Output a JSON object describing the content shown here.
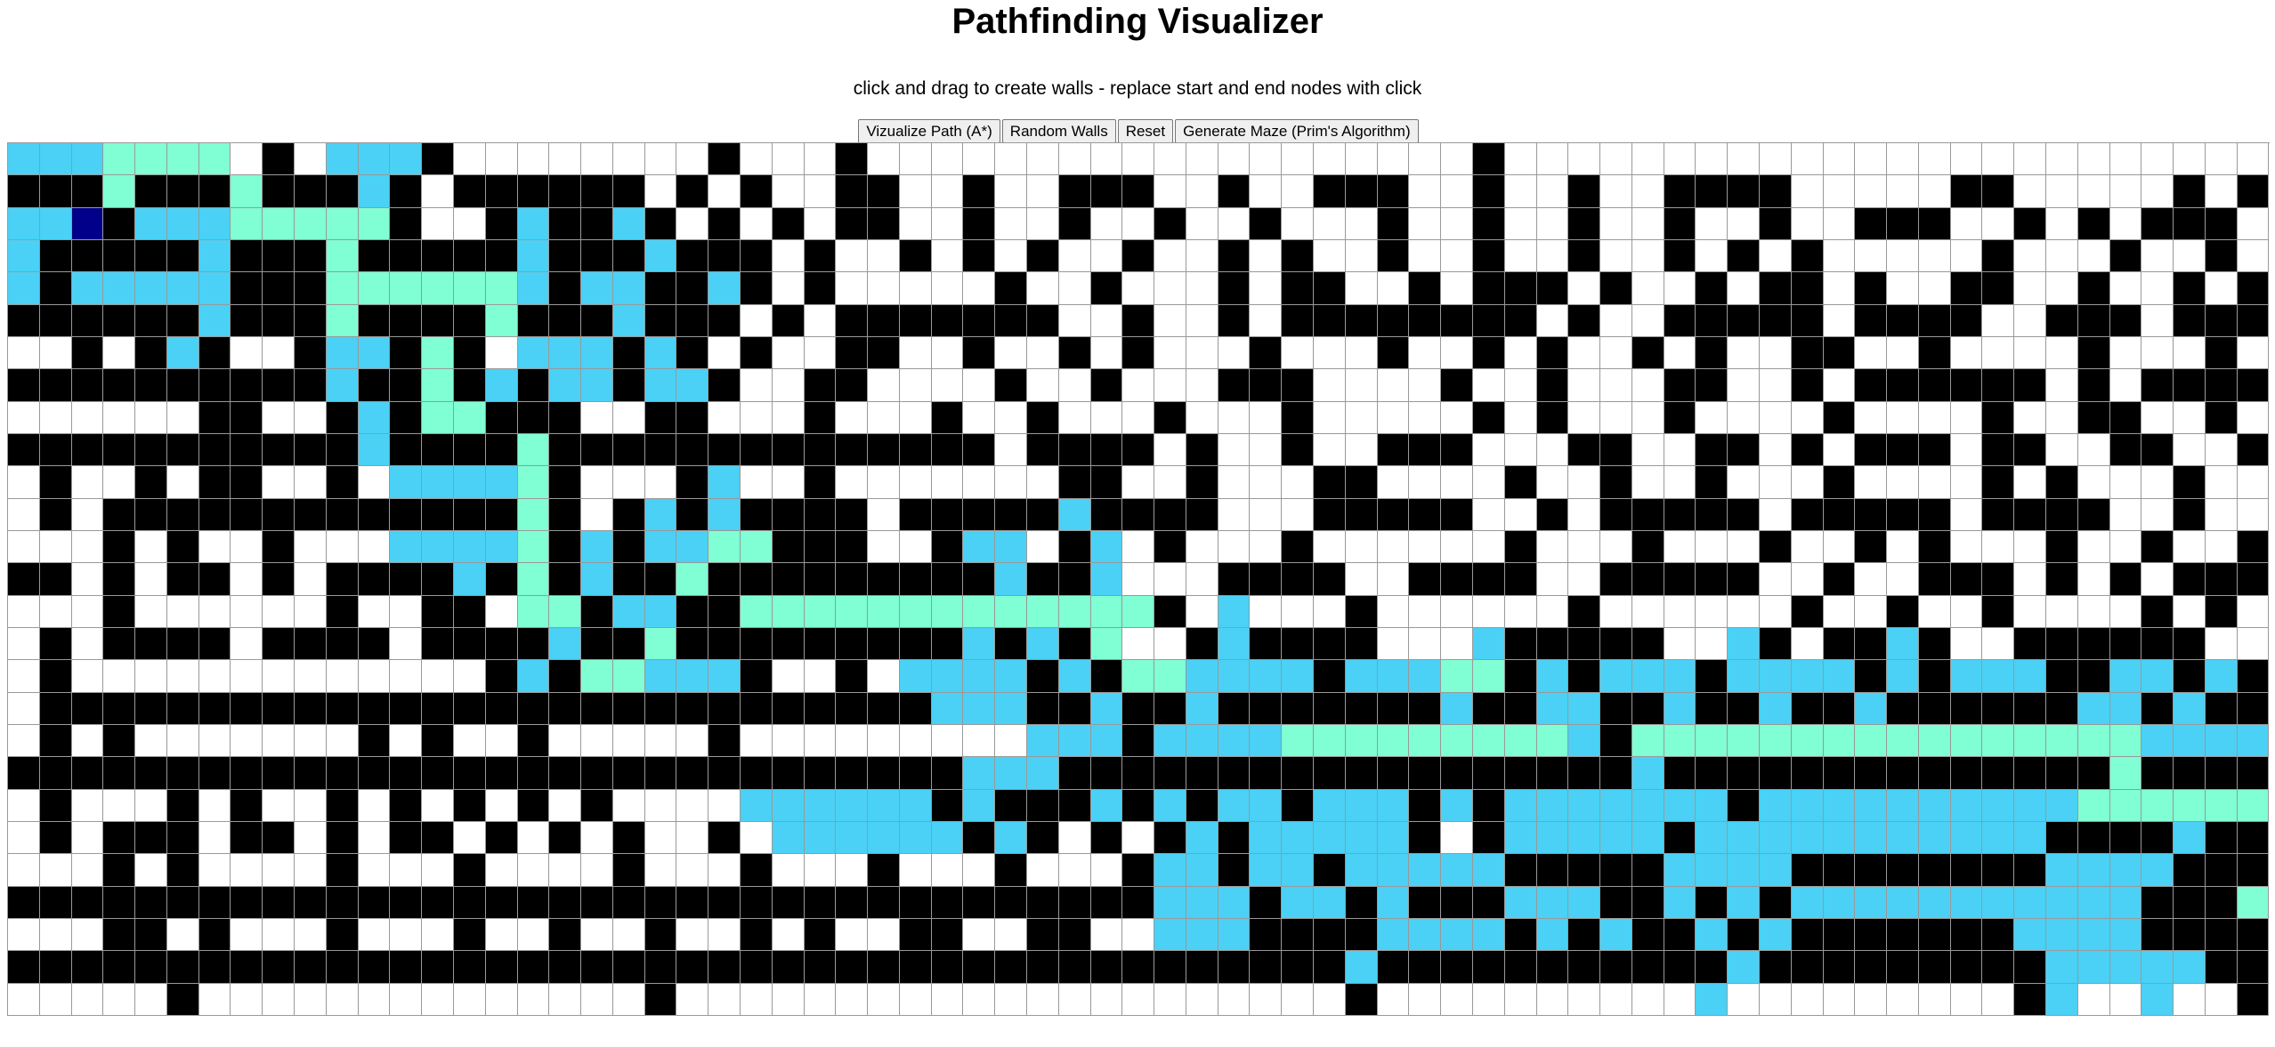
{
  "app": {
    "title": "Pathfinding Visualizer",
    "subtitle": "click and drag to create walls - replace start and end nodes with click"
  },
  "toolbar": {
    "visualize_label": "Vizualize Path (A*)",
    "random_walls_label": "Random Walls",
    "reset_label": "Reset",
    "maze_label": "Generate Maze (Prim's Algorithm)"
  },
  "grid": {
    "rows": 27,
    "cols": 71,
    "legend": {
      "empty": "unvisited-node",
      "wall": "wall-node",
      "visited": "visited-node",
      "path": "path-node",
      "start": "start-node",
      "end": "end-node"
    },
    "colors": {
      "empty": "#ffffff",
      "wall": "#000000",
      "visited": "#4ad1f5",
      "path": "#80ffd4",
      "start": "#00008b",
      "end": "#ff0000",
      "gridline": "#999999"
    },
    "cells": [
      "vvvpppp.w.vvvw........w...w...................w..........................",
      "wwwpwwwpwwwvw.wwwwww.w.w..ww..w..www..w..www..w..w..wwww.....ww.....w.w..",
      "vvswvvvpppppw..wvwwvw.w.w.ww..w..w..w..w...w..w..w..w..w..www..w.w.www...",
      "vwwwwwvwwwpwwwwwvwwwvwww.w..w.w.w..w..w.w..w..w..w..w.w.w.....w...w..w...",
      "vwvvvvvwwwppppppvwvvwwvw.w.....w..w...w.ww..w.www.w..w.ww.w..ww..w..w.w..",
      "wwwwwwvwwwpwwwwpwwwvwww.w.wwwwwww..w..w.wwwwwwww.w..wwwww.wwww..www.wwwww",
      "..w.wvw..wvvwpw.vvvwvw.w..ww..w..w.w...w...w..w.w..w.w..ww..w....w...w.w.",
      "wwwwwwwwwwvwwpwvwvvwvvw..ww....w..w...www....w..w...ww..w.wwwwww.w.wwww..",
      "......ww..wvwppwww..ww...w...w..w...w...w.....w.w...w....w....w..ww..w...",
      "wwwwwwwwwwwvwwwwpwwwwwwwwwwwwww.wwww.w..w..www...ww..ww.w.www.ww..ww..ww.",
      ".w..w.ww..w.vvvvpw...wv..w.......ww..w...ww....w..w..w...w....w.w...w...w",
      ".w.wwwwwwwwwwwwwpw.wvwvwwww.wwwwwvwwww...wwwww..w.wwwww.wwwww.wwww..w..w.",
      "...w.w..w...vvvvpwvwvvppwww..wvv.wv.w...w......w...w...w..w.w...w..w..w..",
      "ww.w.ww.w.wwwwvwpwvwwpwwwwwwwwwvwwv...wwww..wwww..wwwww..w..www.w.w.www..",
      "...w......w..ww.ppwvvwwpppppppppppppw.v...w......w......w..w..w....w.w...",
      ".w.wwww.wwww.wwwwvwwpwwwwwwwwwvwvwp..wvwwww...vwwwww..vw.wwvw..wwwwww..w.",
      ".w.............wvwppvvvw..w.vvvvwvwppvvvvwvvvppwvwvvvwvvvvwvwvvvwwvvwvw.w",
      ".wwwwwwwwwwwwwwwwwwwwwwwwwwwwvvvwwvwwvwwwwwwwvwwvvwwvwwvwwvwwwwwwvvwvwwv.",
      ".w.w.......w.w..w.....w.........vvvwvvvvpppppppppvwppppppppppppppppvvvvvv",
      "wwwwwwwwwwwwwwwwwwwwwwwwwwwwwwvvvwwwwwwwwwwwwwwwwwwvwwwwwwwwwwwwwwpwwwwvw",
      ".w...w.w..w.w.w.w.w....vvvvvvwvwwwvwvwvvwvvvwvwvvvvvvvwvvvvvvvvvvpppppppp",
      ".w.www.ww.w.ww.w.w.w..w.vvvvvvwvw.w.wvwvvvvvw.wvvvvvwvvvvvvvvvvvwwwwvwwwp",
      "...w.w....w...w....w...w...w...w...wvvwvvwvvvvvwwwwwvvvvwwwwwwwwvvvvwwwpw",
      "wwwwwwwwwwwwwwwwwwwwwwwwwwwwwwwwwwwwvvvwvvwvwwwvvvwwvwvwvvvvvvvvvvvwwwpw",
      "...ww.w...w...w..w..w..w.w..ww..ww..vvvwwwwvvvvwvwvwwvwvwwwwwwwvvvvwwwwe.",
      "wwwwwwwwwwwwwwwwwwwwwwwwwwwwwwwwwwwwwwwwwwvwwwwwwwwwwwvwwwwwwwwwvvvvvwwww",
      ".....w..............w.....................w..........v.........wv..v..w."
    ]
  }
}
